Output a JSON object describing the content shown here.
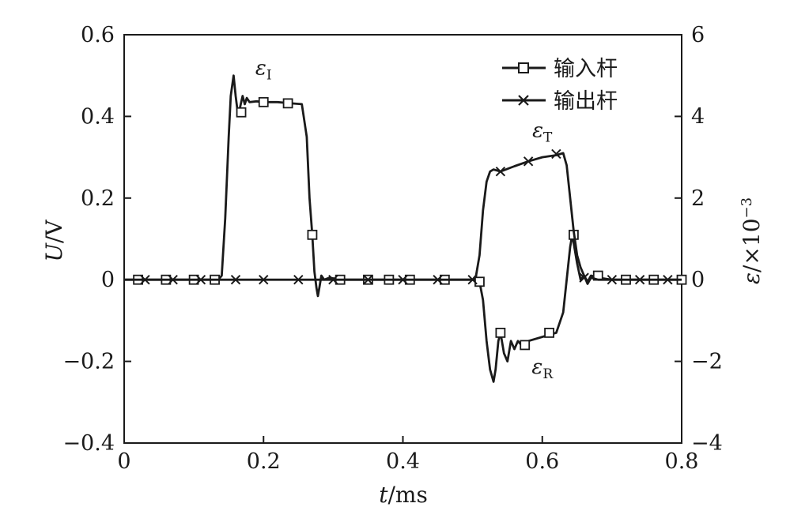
{
  "chart_data": {
    "type": "line",
    "title": "",
    "xlabel_var": "t",
    "xlabel_unit": "/ms",
    "ylabel_var": "U",
    "ylabel_unit": "/V",
    "y2label_var": "ε",
    "y2label_unit": "/×10",
    "y2label_exp": "−3",
    "xlim": [
      0,
      0.8
    ],
    "ylim": [
      -0.4,
      0.6
    ],
    "y2lim": [
      -4,
      6
    ],
    "xticks": [
      0,
      0.2,
      0.4,
      0.6,
      0.8
    ],
    "xtick_labels": [
      "0",
      "0.2",
      "0.4",
      "0.6",
      "0.8"
    ],
    "yticks": [
      -0.4,
      -0.2,
      0,
      0.2,
      0.4,
      0.6
    ],
    "ytick_labels": [
      "−0.4",
      "−0.2",
      "0",
      "0.2",
      "0.4",
      "0.6"
    ],
    "y2ticks": [
      -4,
      -2,
      0,
      2,
      4,
      6
    ],
    "y2tick_labels": [
      "−4",
      "−2",
      "0",
      "2",
      "4",
      "6"
    ],
    "grid": false,
    "legend_position": "top-right",
    "series": [
      {
        "name": "输入杆",
        "marker": "square",
        "x": [
          0,
          0.04,
          0.08,
          0.1,
          0.12,
          0.135,
          0.14,
          0.145,
          0.15,
          0.153,
          0.157,
          0.16,
          0.163,
          0.166,
          0.17,
          0.173,
          0.176,
          0.18,
          0.19,
          0.2,
          0.22,
          0.24,
          0.255,
          0.262,
          0.266,
          0.27,
          0.273,
          0.276,
          0.278,
          0.28,
          0.283,
          0.287,
          0.295,
          0.31,
          0.35,
          0.4,
          0.45,
          0.5,
          0.51,
          0.515,
          0.52,
          0.525,
          0.53,
          0.533,
          0.537,
          0.54,
          0.545,
          0.55,
          0.555,
          0.56,
          0.565,
          0.57,
          0.58,
          0.6,
          0.62,
          0.63,
          0.635,
          0.64,
          0.643,
          0.646,
          0.65,
          0.655,
          0.66,
          0.665,
          0.67,
          0.68,
          0.7,
          0.75,
          0.8
        ],
        "y": [
          0,
          0,
          0,
          0,
          0,
          0,
          0.01,
          0.15,
          0.35,
          0.45,
          0.5,
          0.45,
          0.41,
          0.42,
          0.45,
          0.43,
          0.445,
          0.435,
          0.437,
          0.435,
          0.435,
          0.432,
          0.43,
          0.35,
          0.2,
          0.11,
          0.02,
          -0.02,
          -0.04,
          -0.02,
          0.01,
          0.0,
          0.005,
          0,
          0,
          0,
          0,
          0,
          -0.005,
          -0.05,
          -0.15,
          -0.22,
          -0.25,
          -0.22,
          -0.15,
          -0.13,
          -0.18,
          -0.2,
          -0.15,
          -0.17,
          -0.15,
          -0.16,
          -0.15,
          -0.14,
          -0.13,
          -0.08,
          0,
          0.08,
          0.11,
          0.08,
          0.04,
          0.0,
          0.01,
          -0.005,
          0.01,
          0.005,
          0,
          0,
          0
        ],
        "marker_x": [
          0.02,
          0.06,
          0.1,
          0.13,
          0.168,
          0.2,
          0.235,
          0.27,
          0.31,
          0.35,
          0.38,
          0.41,
          0.46,
          0.51,
          0.54,
          0.575,
          0.61,
          0.645,
          0.68,
          0.72,
          0.76,
          0.8
        ],
        "marker_y": [
          0,
          0,
          0,
          0,
          0.41,
          0.435,
          0.432,
          0.11,
          0,
          0,
          0,
          0,
          0,
          -0.005,
          -0.13,
          -0.16,
          -0.13,
          0.11,
          0.01,
          0,
          0,
          0
        ]
      },
      {
        "name": "输出杆",
        "marker": "x",
        "x": [
          0,
          0.1,
          0.2,
          0.3,
          0.4,
          0.45,
          0.5,
          0.505,
          0.51,
          0.515,
          0.52,
          0.525,
          0.53,
          0.54,
          0.56,
          0.58,
          0.6,
          0.62,
          0.63,
          0.635,
          0.64,
          0.645,
          0.65,
          0.655,
          0.66,
          0.665,
          0.67,
          0.68,
          0.7,
          0.75,
          0.8
        ],
        "y": [
          0,
          0,
          0,
          0,
          0,
          0,
          0,
          0.01,
          0.06,
          0.17,
          0.24,
          0.265,
          0.27,
          0.265,
          0.278,
          0.29,
          0.3,
          0.305,
          0.31,
          0.28,
          0.2,
          0.12,
          0.06,
          0.03,
          0.01,
          -0.01,
          0.005,
          0,
          0,
          0,
          0
        ],
        "marker_x": [
          0.03,
          0.07,
          0.11,
          0.16,
          0.2,
          0.25,
          0.3,
          0.35,
          0.4,
          0.45,
          0.5,
          0.54,
          0.58,
          0.62,
          0.66,
          0.7,
          0.74,
          0.78
        ],
        "marker_y": [
          0,
          0,
          0,
          0,
          0,
          0,
          0,
          0,
          0,
          0,
          0,
          0.265,
          0.29,
          0.308,
          0.005,
          0,
          0,
          0
        ]
      }
    ],
    "annotations": [
      {
        "base": "ε",
        "sub": "I",
        "x": 0.2,
        "y": 0.5
      },
      {
        "base": "ε",
        "sub": "T",
        "x": 0.6,
        "y": 0.35
      },
      {
        "base": "ε",
        "sub": "R",
        "x": 0.6,
        "y": -0.23
      }
    ]
  }
}
